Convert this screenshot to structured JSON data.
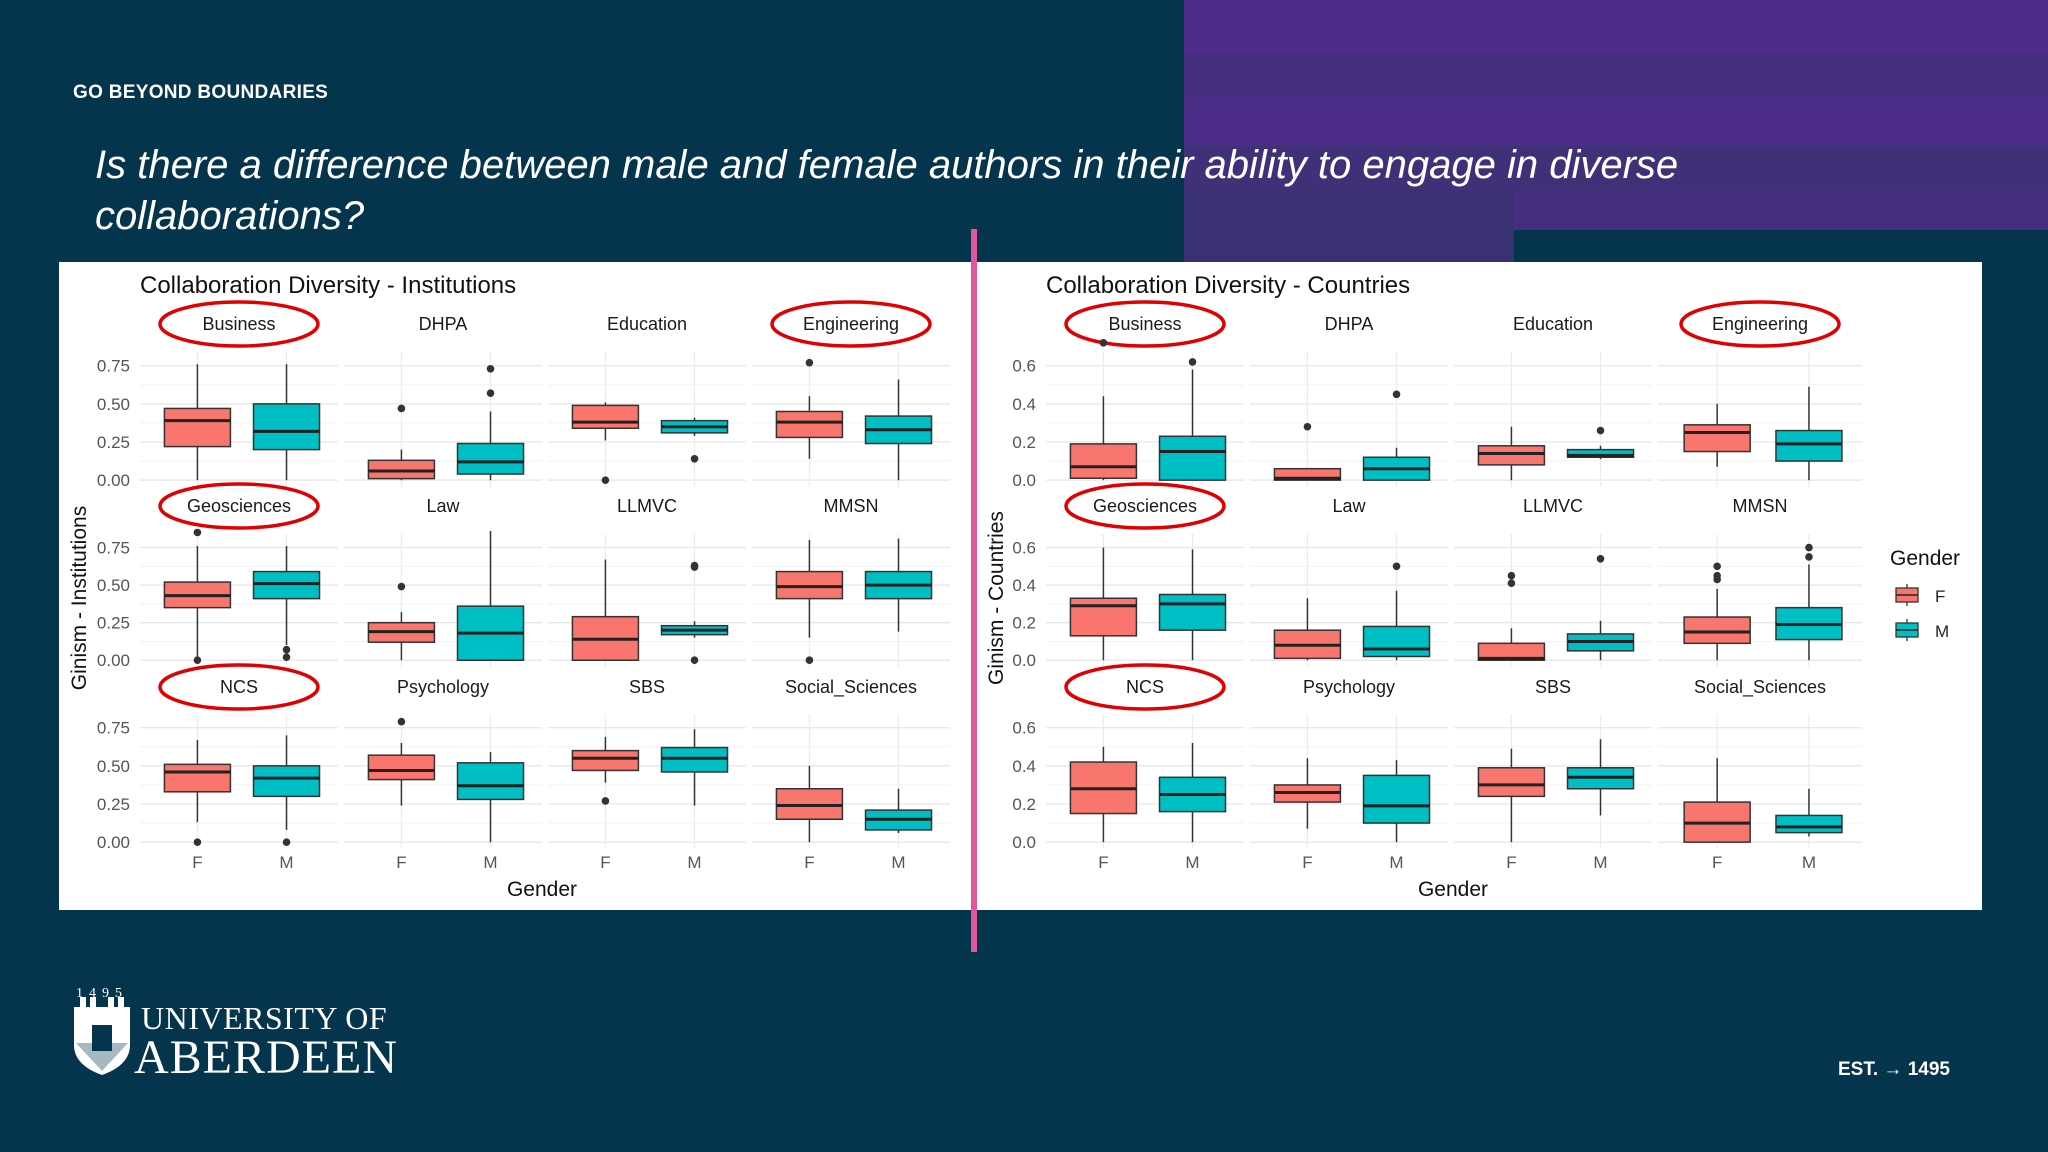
{
  "slide": {
    "eyebrow": "GO BEYOND BOUNDARIES",
    "question": "Is there a difference between male and female authors in their ability to engage in diverse collaborations?",
    "logo_year": "1495",
    "logo_line1": "UNIVERSITY OF",
    "logo_line2": "ABERDEEN",
    "est_label": "EST.",
    "est_arrow": "→",
    "est_year": "1495",
    "colors": {
      "background": "#04354d",
      "purple": "#4f2e8c",
      "divider": "#e2579b",
      "female": "#f8766d",
      "male": "#00bfc4",
      "highlight": "#e00000"
    }
  },
  "legend": {
    "title": "Gender",
    "items": [
      "F",
      "M"
    ]
  },
  "chart_data": [
    {
      "type": "boxplot",
      "title": "Collaboration Diversity - Institutions",
      "xlabel": "Gender",
      "ylabel": "Ginism - Institutions",
      "ylim": [
        0,
        0.75
      ],
      "yticks": [
        "0.00",
        "0.25",
        "0.50",
        "0.75"
      ],
      "categories": [
        "F",
        "M"
      ],
      "facets": [
        {
          "name": "Business",
          "circled": true,
          "F": {
            "q1": 0.22,
            "median": 0.39,
            "q3": 0.47,
            "lo": 0.0,
            "hi": 0.76,
            "outliers": []
          },
          "M": {
            "q1": 0.2,
            "median": 0.32,
            "q3": 0.5,
            "lo": 0.0,
            "hi": 0.76,
            "outliers": []
          }
        },
        {
          "name": "DHPA",
          "circled": false,
          "F": {
            "q1": 0.01,
            "median": 0.06,
            "q3": 0.13,
            "lo": 0.0,
            "hi": 0.2,
            "outliers": [
              0.47
            ]
          },
          "M": {
            "q1": 0.04,
            "median": 0.12,
            "q3": 0.24,
            "lo": 0.0,
            "hi": 0.45,
            "outliers": [
              0.57,
              0.73
            ]
          }
        },
        {
          "name": "Education",
          "circled": false,
          "F": {
            "q1": 0.34,
            "median": 0.38,
            "q3": 0.49,
            "lo": 0.26,
            "hi": 0.51,
            "outliers": [
              0.0
            ]
          },
          "M": {
            "q1": 0.31,
            "median": 0.35,
            "q3": 0.39,
            "lo": 0.29,
            "hi": 0.41,
            "outliers": [
              0.14
            ]
          }
        },
        {
          "name": "Engineering",
          "circled": true,
          "F": {
            "q1": 0.28,
            "median": 0.38,
            "q3": 0.45,
            "lo": 0.14,
            "hi": 0.55,
            "outliers": [
              0.77
            ]
          },
          "M": {
            "q1": 0.24,
            "median": 0.33,
            "q3": 0.42,
            "lo": 0.0,
            "hi": 0.66,
            "outliers": []
          }
        },
        {
          "name": "Geosciences",
          "circled": true,
          "F": {
            "q1": 0.35,
            "median": 0.43,
            "q3": 0.52,
            "lo": 0.0,
            "hi": 0.76,
            "outliers": [
              0.85,
              0.0
            ]
          },
          "M": {
            "q1": 0.41,
            "median": 0.51,
            "q3": 0.59,
            "lo": 0.1,
            "hi": 0.76,
            "outliers": [
              0.02,
              0.07
            ]
          }
        },
        {
          "name": "Law",
          "circled": false,
          "F": {
            "q1": 0.12,
            "median": 0.19,
            "q3": 0.25,
            "lo": 0.0,
            "hi": 0.32,
            "outliers": [
              0.49
            ]
          },
          "M": {
            "q1": 0.0,
            "median": 0.18,
            "q3": 0.36,
            "lo": 0.0,
            "hi": 0.86,
            "outliers": []
          }
        },
        {
          "name": "LLMVC",
          "circled": false,
          "F": {
            "q1": 0.0,
            "median": 0.14,
            "q3": 0.29,
            "lo": 0.0,
            "hi": 0.67,
            "outliers": []
          },
          "M": {
            "q1": 0.17,
            "median": 0.2,
            "q3": 0.23,
            "lo": 0.15,
            "hi": 0.26,
            "outliers": [
              0.0,
              0.62,
              0.63
            ]
          }
        },
        {
          "name": "MMSN",
          "circled": false,
          "F": {
            "q1": 0.41,
            "median": 0.49,
            "q3": 0.59,
            "lo": 0.15,
            "hi": 0.8,
            "outliers": [
              0.0
            ]
          },
          "M": {
            "q1": 0.41,
            "median": 0.5,
            "q3": 0.59,
            "lo": 0.19,
            "hi": 0.81,
            "outliers": []
          }
        },
        {
          "name": "NCS",
          "circled": true,
          "F": {
            "q1": 0.33,
            "median": 0.46,
            "q3": 0.51,
            "lo": 0.13,
            "hi": 0.67,
            "outliers": [
              0.0
            ]
          },
          "M": {
            "q1": 0.3,
            "median": 0.42,
            "q3": 0.5,
            "lo": 0.08,
            "hi": 0.7,
            "outliers": [
              0.0
            ]
          }
        },
        {
          "name": "Psychology",
          "circled": false,
          "F": {
            "q1": 0.41,
            "median": 0.47,
            "q3": 0.57,
            "lo": 0.24,
            "hi": 0.65,
            "outliers": [
              0.79
            ]
          },
          "M": {
            "q1": 0.28,
            "median": 0.37,
            "q3": 0.52,
            "lo": 0.0,
            "hi": 0.59,
            "outliers": []
          }
        },
        {
          "name": "SBS",
          "circled": false,
          "F": {
            "q1": 0.47,
            "median": 0.55,
            "q3": 0.6,
            "lo": 0.39,
            "hi": 0.69,
            "outliers": [
              0.27
            ]
          },
          "M": {
            "q1": 0.46,
            "median": 0.55,
            "q3": 0.62,
            "lo": 0.24,
            "hi": 0.74,
            "outliers": []
          }
        },
        {
          "name": "Social_Sciences",
          "circled": false,
          "F": {
            "q1": 0.15,
            "median": 0.24,
            "q3": 0.35,
            "lo": 0.0,
            "hi": 0.5,
            "outliers": []
          },
          "M": {
            "q1": 0.08,
            "median": 0.15,
            "q3": 0.21,
            "lo": 0.06,
            "hi": 0.35,
            "outliers": []
          }
        }
      ]
    },
    {
      "type": "boxplot",
      "title": "Collaboration Diversity - Countries",
      "xlabel": "Gender",
      "ylabel": "Ginism - Countries",
      "ylim": [
        0,
        0.6
      ],
      "yticks": [
        "0.0",
        "0.2",
        "0.4",
        "0.6"
      ],
      "categories": [
        "F",
        "M"
      ],
      "facets": [
        {
          "name": "Business",
          "circled": true,
          "F": {
            "q1": 0.01,
            "median": 0.07,
            "q3": 0.19,
            "lo": 0.0,
            "hi": 0.44,
            "outliers": [
              0.72
            ]
          },
          "M": {
            "q1": 0.0,
            "median": 0.15,
            "q3": 0.23,
            "lo": 0.0,
            "hi": 0.58,
            "outliers": [
              0.62
            ]
          }
        },
        {
          "name": "DHPA",
          "circled": false,
          "F": {
            "q1": 0.0,
            "median": 0.01,
            "q3": 0.06,
            "lo": 0.0,
            "hi": 0.06,
            "outliers": [
              0.28
            ]
          },
          "M": {
            "q1": 0.0,
            "median": 0.06,
            "q3": 0.12,
            "lo": 0.0,
            "hi": 0.17,
            "outliers": [
              0.45
            ]
          }
        },
        {
          "name": "Education",
          "circled": false,
          "F": {
            "q1": 0.08,
            "median": 0.14,
            "q3": 0.18,
            "lo": 0.0,
            "hi": 0.28,
            "outliers": []
          },
          "M": {
            "q1": 0.12,
            "median": 0.13,
            "q3": 0.16,
            "lo": 0.11,
            "hi": 0.18,
            "outliers": [
              0.26
            ]
          }
        },
        {
          "name": "Engineering",
          "circled": true,
          "F": {
            "q1": 0.15,
            "median": 0.25,
            "q3": 0.29,
            "lo": 0.07,
            "hi": 0.4,
            "outliers": []
          },
          "M": {
            "q1": 0.1,
            "median": 0.19,
            "q3": 0.26,
            "lo": 0.0,
            "hi": 0.49,
            "outliers": []
          }
        },
        {
          "name": "Geosciences",
          "circled": true,
          "F": {
            "q1": 0.13,
            "median": 0.29,
            "q3": 0.33,
            "lo": 0.0,
            "hi": 0.6,
            "outliers": []
          },
          "M": {
            "q1": 0.16,
            "median": 0.3,
            "q3": 0.35,
            "lo": 0.0,
            "hi": 0.59,
            "outliers": []
          }
        },
        {
          "name": "Law",
          "circled": false,
          "F": {
            "q1": 0.01,
            "median": 0.08,
            "q3": 0.16,
            "lo": 0.0,
            "hi": 0.33,
            "outliers": []
          },
          "M": {
            "q1": 0.02,
            "median": 0.06,
            "q3": 0.18,
            "lo": 0.0,
            "hi": 0.37,
            "outliers": [
              0.5
            ]
          }
        },
        {
          "name": "LLMVC",
          "circled": false,
          "F": {
            "q1": 0.0,
            "median": 0.01,
            "q3": 0.09,
            "lo": 0.0,
            "hi": 0.17,
            "outliers": [
              0.41,
              0.45
            ]
          },
          "M": {
            "q1": 0.05,
            "median": 0.1,
            "q3": 0.14,
            "lo": 0.0,
            "hi": 0.21,
            "outliers": [
              0.54
            ]
          }
        },
        {
          "name": "MMSN",
          "circled": false,
          "F": {
            "q1": 0.09,
            "median": 0.15,
            "q3": 0.23,
            "lo": 0.0,
            "hi": 0.38,
            "outliers": [
              0.43,
              0.45,
              0.5
            ]
          },
          "M": {
            "q1": 0.11,
            "median": 0.19,
            "q3": 0.28,
            "lo": 0.0,
            "hi": 0.51,
            "outliers": [
              0.55,
              0.6
            ]
          }
        },
        {
          "name": "NCS",
          "circled": true,
          "F": {
            "q1": 0.15,
            "median": 0.28,
            "q3": 0.42,
            "lo": 0.0,
            "hi": 0.5,
            "outliers": []
          },
          "M": {
            "q1": 0.16,
            "median": 0.25,
            "q3": 0.34,
            "lo": 0.0,
            "hi": 0.52,
            "outliers": []
          }
        },
        {
          "name": "Psychology",
          "circled": false,
          "F": {
            "q1": 0.21,
            "median": 0.26,
            "q3": 0.3,
            "lo": 0.07,
            "hi": 0.44,
            "outliers": []
          },
          "M": {
            "q1": 0.1,
            "median": 0.19,
            "q3": 0.35,
            "lo": 0.0,
            "hi": 0.43,
            "outliers": []
          }
        },
        {
          "name": "SBS",
          "circled": false,
          "F": {
            "q1": 0.24,
            "median": 0.3,
            "q3": 0.39,
            "lo": 0.0,
            "hi": 0.49,
            "outliers": []
          },
          "M": {
            "q1": 0.28,
            "median": 0.34,
            "q3": 0.39,
            "lo": 0.14,
            "hi": 0.54,
            "outliers": []
          }
        },
        {
          "name": "Social_Sciences",
          "circled": false,
          "F": {
            "q1": 0.0,
            "median": 0.1,
            "q3": 0.21,
            "lo": 0.0,
            "hi": 0.44,
            "outliers": []
          },
          "M": {
            "q1": 0.05,
            "median": 0.08,
            "q3": 0.14,
            "lo": 0.03,
            "hi": 0.28,
            "outliers": []
          }
        }
      ]
    }
  ]
}
